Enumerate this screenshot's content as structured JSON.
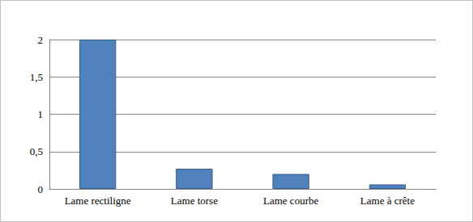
{
  "chart_data": {
    "type": "bar",
    "categories": [
      "Lame rectiligne",
      "Lame torse",
      "Lame courbe",
      "Lame à crête"
    ],
    "values": [
      2,
      0.27,
      0.2,
      0.06
    ],
    "color": "#4f81bd",
    "ylim": [
      0,
      2
    ],
    "yticks": [
      0,
      {
        "value": 0.5,
        "label": "0,5"
      },
      1,
      {
        "value": 1.5,
        "label": "1,5"
      },
      2
    ],
    "grid": true
  }
}
